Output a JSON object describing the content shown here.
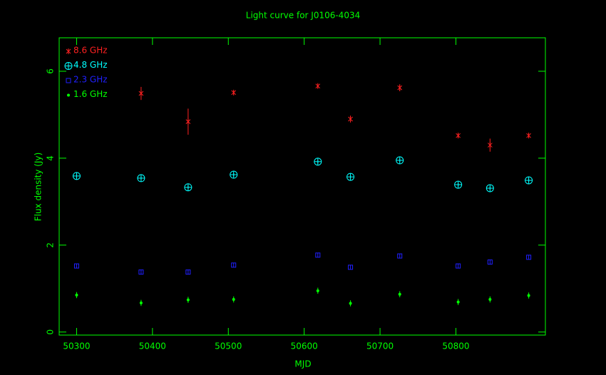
{
  "chart_data": {
    "type": "scatter",
    "title": "Light curve for J0106-4034",
    "xlabel": "MJD",
    "ylabel": "Flux density (Jy)",
    "x": [
      50300,
      50385,
      50447,
      50507,
      50618,
      50661,
      50726,
      50803,
      50845,
      50896
    ],
    "xlim": [
      50277,
      50918
    ],
    "xticks": [
      50300,
      50400,
      50500,
      50600,
      50700,
      50800
    ],
    "ylim": [
      -0.07,
      6.77
    ],
    "yticks": [
      0,
      2,
      4,
      6
    ],
    "axis_color": "#00ff00",
    "legend": "upper left",
    "series": [
      {
        "name": "8.6 GHz",
        "color": "#ff2020",
        "marker": "cross",
        "values": [
          null,
          5.49,
          4.84,
          5.51,
          5.66,
          4.9,
          5.62,
          4.52,
          4.3,
          4.52
        ],
        "errors": [
          null,
          0.15,
          0.3,
          0.05,
          0.05,
          0.08,
          0.08,
          0.05,
          0.15,
          0.05
        ]
      },
      {
        "name": "4.8 GHz",
        "color": "#00ffff",
        "marker": "circle-plus",
        "values": [
          3.59,
          3.54,
          3.33,
          3.62,
          3.92,
          3.57,
          3.95,
          3.39,
          3.31,
          3.49
        ],
        "errors": [
          0.04,
          0.04,
          0.04,
          0.04,
          0.04,
          0.04,
          0.04,
          0.04,
          0.04,
          0.04
        ]
      },
      {
        "name": "2.3 GHz",
        "color": "#2020ff",
        "marker": "square",
        "values": [
          1.52,
          1.38,
          1.38,
          1.54,
          1.77,
          1.49,
          1.75,
          1.52,
          1.61,
          1.72
        ],
        "errors": [
          0.05,
          0.05,
          0.05,
          0.05,
          0.05,
          0.05,
          0.05,
          0.05,
          0.05,
          0.05
        ]
      },
      {
        "name": "1.6 GHz",
        "color": "#00ff00",
        "marker": "dot",
        "values": [
          0.85,
          0.67,
          0.74,
          0.75,
          0.95,
          0.66,
          0.87,
          0.69,
          0.75,
          0.84
        ],
        "errors": [
          0.07,
          0.07,
          0.07,
          0.07,
          0.07,
          0.07,
          0.07,
          0.07,
          0.07,
          0.07
        ]
      }
    ]
  }
}
